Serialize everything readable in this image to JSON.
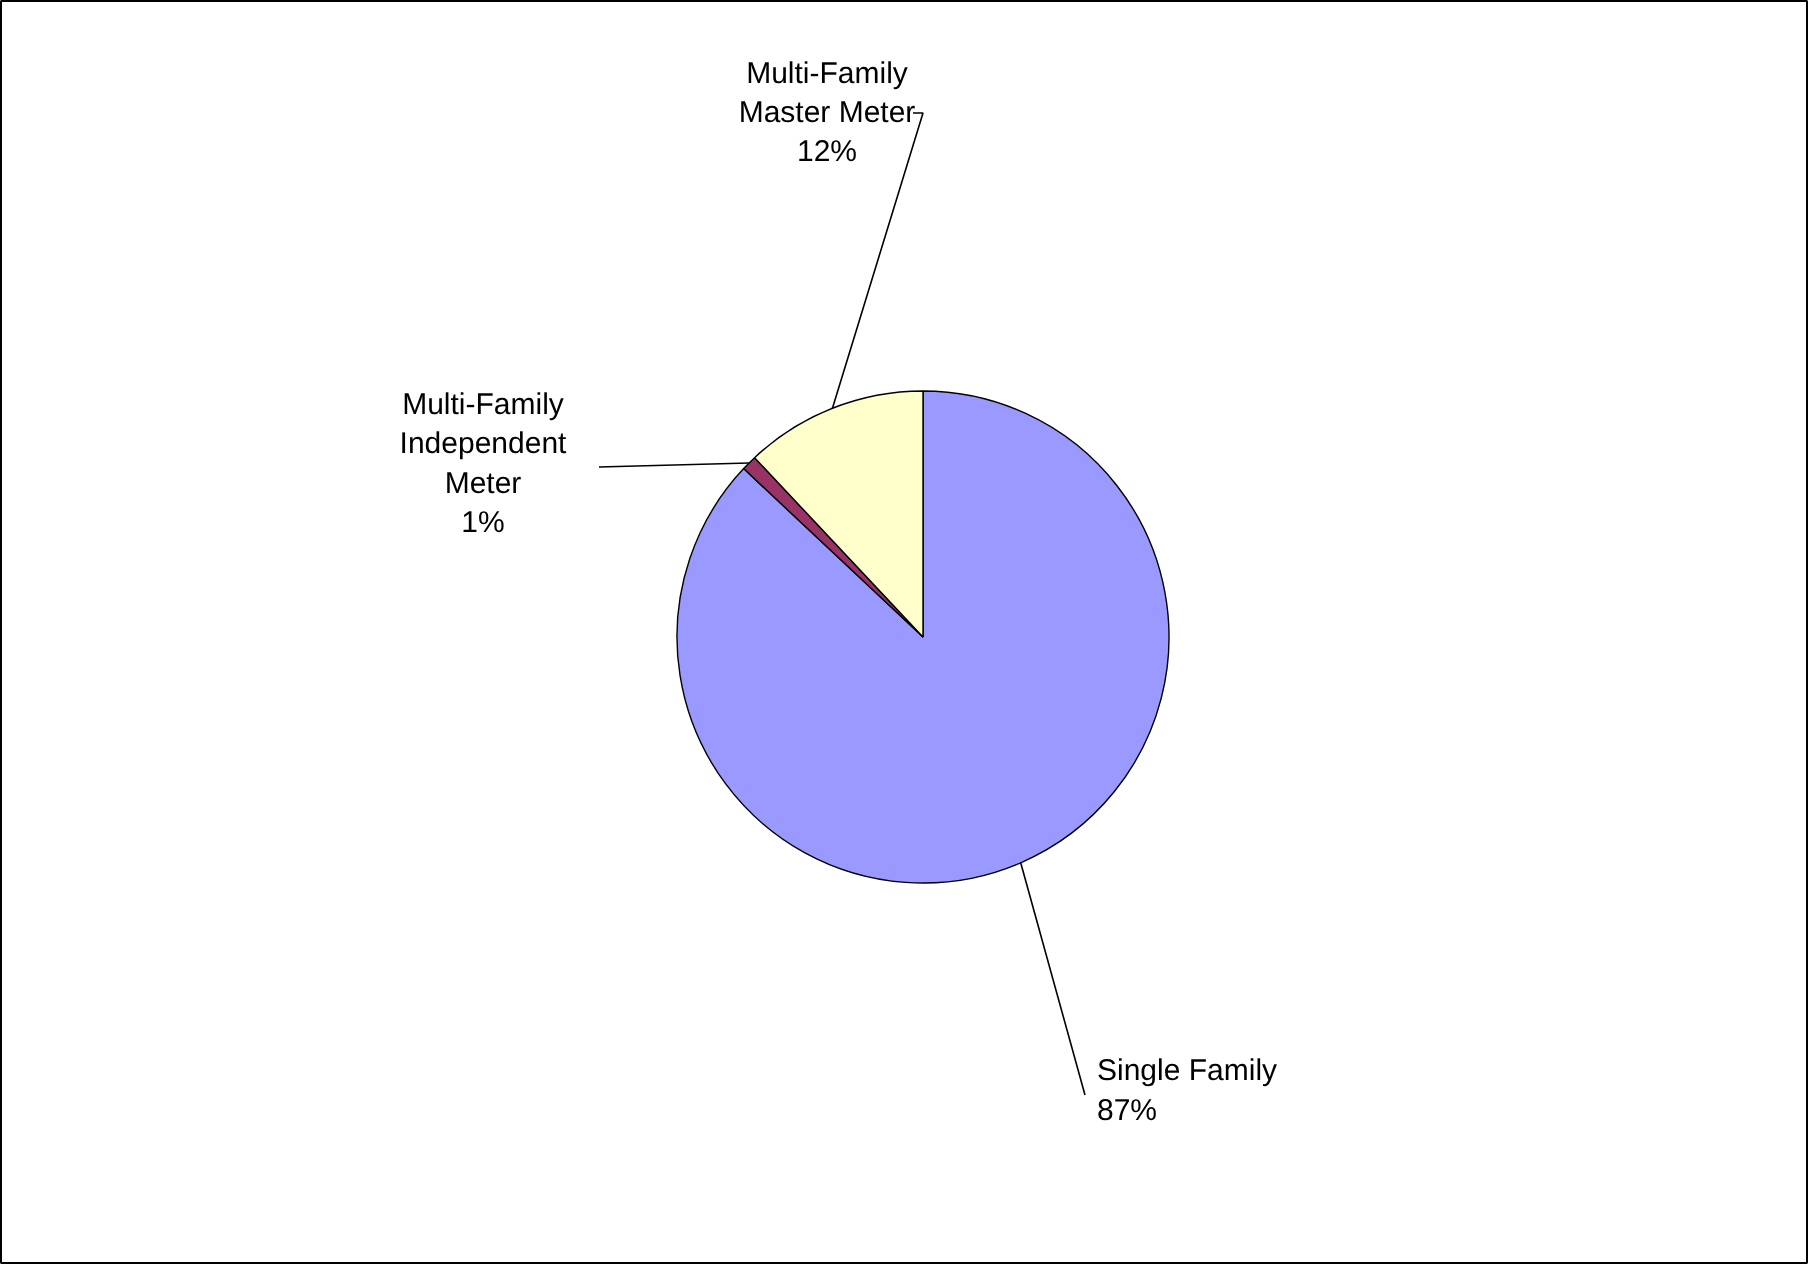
{
  "chart_data": {
    "type": "pie",
    "categories": [
      "Single Family",
      "Multi-Family Independent Meter",
      "Multi-Family Master Meter"
    ],
    "values": [
      87,
      1,
      12
    ],
    "colors": [
      "#9999ff",
      "#993366",
      "#ffffcc"
    ],
    "value_labels": [
      "87%",
      "1%",
      "12%"
    ],
    "legend": false
  }
}
